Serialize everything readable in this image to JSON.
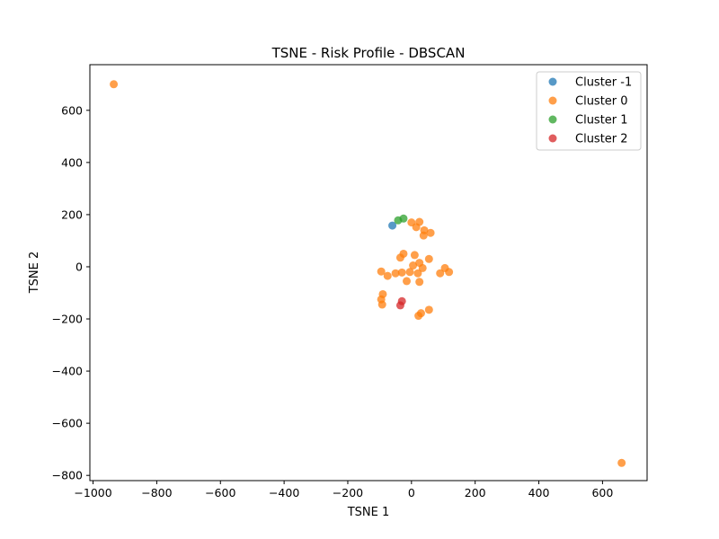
{
  "chart_data": {
    "type": "scatter",
    "title": "TSNE - Risk Profile - DBSCAN",
    "xlabel": "TSNE 1",
    "ylabel": "TSNE 2",
    "xlim": [
      -1010,
      740
    ],
    "ylim": [
      -820,
      775
    ],
    "xticks": [
      -1000,
      -800,
      -600,
      -400,
      -200,
      0,
      200,
      400,
      600
    ],
    "yticks": [
      -800,
      -600,
      -400,
      -200,
      0,
      200,
      400,
      600
    ],
    "xtick_labels": [
      "−1000",
      "−800",
      "−600",
      "−400",
      "−200",
      "0",
      "200",
      "400",
      "600"
    ],
    "ytick_labels": [
      "−800",
      "−600",
      "−400",
      "−200",
      "0",
      "200",
      "400",
      "600"
    ],
    "grid": false,
    "legend_position": "top-right",
    "series": [
      {
        "name": "Cluster -1",
        "color": "#1f77b4",
        "points": [
          [
            -60,
            158
          ]
        ]
      },
      {
        "name": "Cluster 0",
        "color": "#ff7f0e",
        "points": [
          [
            -935,
            700
          ],
          [
            660,
            -752
          ],
          [
            0,
            170
          ],
          [
            25,
            172
          ],
          [
            15,
            152
          ],
          [
            40,
            140
          ],
          [
            60,
            130
          ],
          [
            38,
            120
          ],
          [
            -25,
            50
          ],
          [
            10,
            45
          ],
          [
            -35,
            35
          ],
          [
            55,
            30
          ],
          [
            25,
            15
          ],
          [
            5,
            5
          ],
          [
            35,
            -5
          ],
          [
            105,
            -5
          ],
          [
            -95,
            -18
          ],
          [
            -30,
            -22
          ],
          [
            -50,
            -25
          ],
          [
            -5,
            -20
          ],
          [
            20,
            -25
          ],
          [
            90,
            -25
          ],
          [
            118,
            -20
          ],
          [
            -75,
            -35
          ],
          [
            -15,
            -55
          ],
          [
            25,
            -58
          ],
          [
            -90,
            -105
          ],
          [
            -95,
            -125
          ],
          [
            -92,
            -145
          ],
          [
            55,
            -165
          ],
          [
            30,
            -178
          ],
          [
            22,
            -188
          ]
        ]
      },
      {
        "name": "Cluster 1",
        "color": "#2ca02c",
        "points": [
          [
            -42,
            178
          ],
          [
            -25,
            185
          ]
        ]
      },
      {
        "name": "Cluster 2",
        "color": "#d62728",
        "points": [
          [
            -30,
            -132
          ],
          [
            -35,
            -148
          ]
        ]
      }
    ]
  }
}
